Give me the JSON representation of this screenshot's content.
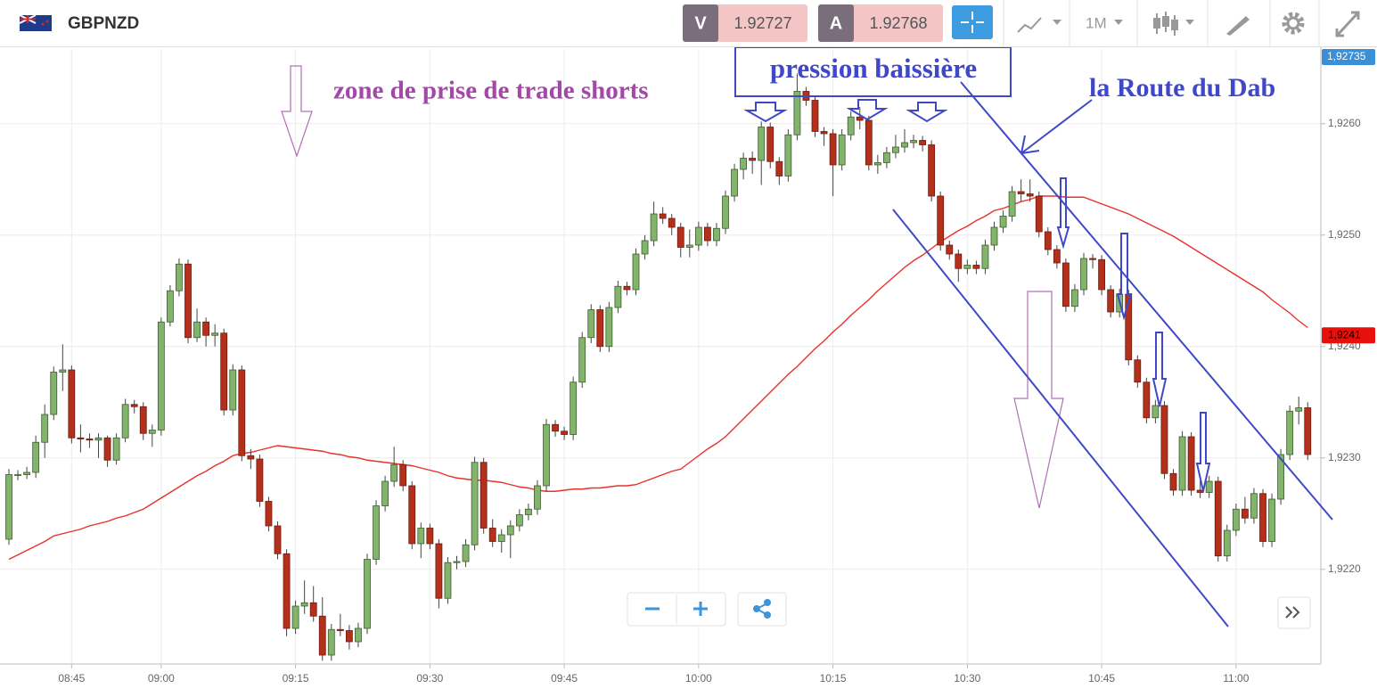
{
  "header": {
    "symbol": "GBPNZD",
    "sell_label": "V",
    "sell_price": "1.92727",
    "buy_label": "A",
    "buy_price": "1.92768",
    "timeframe": "1M"
  },
  "chart_data": {
    "type": "candlestick",
    "grid": true,
    "up_color": "#82b46b",
    "down_color": "#b5301b",
    "ylim": [
      1.92115,
      1.92667
    ],
    "yticks": [
      {
        "value": 1.922,
        "label": "1,9220"
      },
      {
        "value": 1.923,
        "label": "1,9230"
      },
      {
        "value": 1.924,
        "label": "1,9240"
      },
      {
        "value": 1.925,
        "label": "1,9250"
      },
      {
        "value": 1.926,
        "label": "1,9260"
      }
    ],
    "annotations": [
      "zone de prise de trade shorts",
      "pression baissière",
      "la Route du Dab"
    ],
    "top_tag": {
      "label": "1,92735",
      "color": "#3b8fd6"
    },
    "price_tags": [
      {
        "value": 1.9241,
        "label": "1,9241",
        "color": "#e8100a"
      }
    ],
    "categories": [
      null,
      null,
      null,
      null,
      null,
      null,
      null,
      "08:45",
      null,
      null,
      null,
      null,
      null,
      null,
      null,
      null,
      null,
      "09:00",
      null,
      null,
      null,
      null,
      null,
      null,
      null,
      null,
      null,
      null,
      null,
      null,
      null,
      null,
      "09:15",
      null,
      null,
      null,
      null,
      null,
      null,
      null,
      null,
      null,
      null,
      null,
      null,
      null,
      null,
      "09:30",
      null,
      null,
      null,
      null,
      null,
      null,
      null,
      null,
      null,
      null,
      null,
      null,
      null,
      null,
      "09:45",
      null,
      null,
      null,
      null,
      null,
      null,
      null,
      null,
      null,
      null,
      null,
      null,
      null,
      null,
      "10:00",
      null,
      null,
      null,
      null,
      null,
      null,
      null,
      null,
      null,
      null,
      null,
      null,
      null,
      null,
      "10:15",
      null,
      null,
      null,
      null,
      null,
      null,
      null,
      null,
      null,
      null,
      null,
      null,
      null,
      null,
      "10:30",
      null,
      null,
      null,
      null,
      null,
      null,
      null,
      null,
      null,
      null,
      null,
      null,
      null,
      null,
      "10:45",
      null,
      null,
      null,
      null,
      null,
      null,
      null,
      null,
      null,
      null,
      null,
      null,
      null,
      null,
      "11:00",
      null,
      null,
      null,
      null,
      null,
      null,
      null,
      null
    ],
    "ohlc": [
      [
        1.92227,
        1.9229,
        1.92222,
        1.92285
      ],
      [
        1.92285,
        1.92289,
        1.9228,
        1.92285
      ],
      [
        1.92285,
        1.92292,
        1.92281,
        1.92287
      ],
      [
        1.92287,
        1.9232,
        1.92282,
        1.92314
      ],
      [
        1.92314,
        1.92348,
        1.923,
        1.92339
      ],
      [
        1.92339,
        1.92382,
        1.92334,
        1.92377
      ],
      [
        1.92377,
        1.92402,
        1.9236,
        1.92379
      ],
      [
        1.92379,
        1.92383,
        1.92313,
        1.92318
      ],
      [
        1.92318,
        1.9233,
        1.92305,
        1.92317
      ],
      [
        1.92317,
        1.92322,
        1.92309,
        1.92316
      ],
      [
        1.92316,
        1.92322,
        1.923,
        1.92318
      ],
      [
        1.92318,
        1.9232,
        1.92292,
        1.92298
      ],
      [
        1.92298,
        1.92322,
        1.92294,
        1.92318
      ],
      [
        1.92318,
        1.92353,
        1.92314,
        1.92348
      ],
      [
        1.92348,
        1.92352,
        1.9234,
        1.92346
      ],
      [
        1.92346,
        1.9235,
        1.92316,
        1.92322
      ],
      [
        1.92322,
        1.9233,
        1.9231,
        1.92325
      ],
      [
        1.92325,
        1.92426,
        1.9232,
        1.92422
      ],
      [
        1.92422,
        1.92455,
        1.92418,
        1.9245
      ],
      [
        1.9245,
        1.92479,
        1.92445,
        1.92474
      ],
      [
        1.92474,
        1.92478,
        1.92403,
        1.92408
      ],
      [
        1.92408,
        1.92434,
        1.92404,
        1.92422
      ],
      [
        1.92422,
        1.92426,
        1.924,
        1.9241
      ],
      [
        1.9241,
        1.9242,
        1.924,
        1.92412
      ],
      [
        1.92412,
        1.92416,
        1.92338,
        1.92343
      ],
      [
        1.92343,
        1.92384,
        1.92338,
        1.92379
      ],
      [
        1.92379,
        1.92383,
        1.92297,
        1.92302
      ],
      [
        1.92302,
        1.92308,
        1.9229,
        1.92299
      ],
      [
        1.92299,
        1.92303,
        1.92256,
        1.92261
      ],
      [
        1.92261,
        1.92265,
        1.92234,
        1.92239
      ],
      [
        1.92239,
        1.92243,
        1.92209,
        1.92214
      ],
      [
        1.92214,
        1.92218,
        1.9214,
        1.92147
      ],
      [
        1.92147,
        1.92172,
        1.92142,
        1.92167
      ],
      [
        1.92167,
        1.9219,
        1.9216,
        1.9217
      ],
      [
        1.9217,
        1.92185,
        1.92153,
        1.92158
      ],
      [
        1.92158,
        1.92175,
        1.92118,
        1.92123
      ],
      [
        1.92123,
        1.92151,
        1.92118,
        1.92146
      ],
      [
        1.92146,
        1.9216,
        1.9214,
        1.92145
      ],
      [
        1.92145,
        1.9215,
        1.92128,
        1.92135
      ],
      [
        1.92135,
        1.92152,
        1.9213,
        1.92147
      ],
      [
        1.92147,
        1.92214,
        1.92142,
        1.92209
      ],
      [
        1.92209,
        1.92262,
        1.92204,
        1.92257
      ],
      [
        1.92257,
        1.92284,
        1.92252,
        1.92279
      ],
      [
        1.92279,
        1.9231,
        1.92274,
        1.92294
      ],
      [
        1.92294,
        1.92298,
        1.9227,
        1.92275
      ],
      [
        1.92275,
        1.92279,
        1.92218,
        1.92223
      ],
      [
        1.92223,
        1.92242,
        1.9221,
        1.92237
      ],
      [
        1.92237,
        1.92241,
        1.92218,
        1.92223
      ],
      [
        1.92223,
        1.92227,
        1.92165,
        1.92174
      ],
      [
        1.92174,
        1.92211,
        1.92169,
        1.92206
      ],
      [
        1.92206,
        1.92212,
        1.922,
        1.92207
      ],
      [
        1.92207,
        1.92227,
        1.92202,
        1.92222
      ],
      [
        1.92222,
        1.92301,
        1.92217,
        1.92296
      ],
      [
        1.92296,
        1.923,
        1.92232,
        1.92237
      ],
      [
        1.92237,
        1.92245,
        1.9222,
        1.92225
      ],
      [
        1.92225,
        1.92236,
        1.92215,
        1.92231
      ],
      [
        1.92231,
        1.92244,
        1.9221,
        1.92239
      ],
      [
        1.92239,
        1.92254,
        1.92234,
        1.92249
      ],
      [
        1.92249,
        1.92259,
        1.92244,
        1.92254
      ],
      [
        1.92254,
        1.9228,
        1.92249,
        1.92275
      ],
      [
        1.92275,
        1.92335,
        1.9227,
        1.9233
      ],
      [
        1.9233,
        1.92334,
        1.92319,
        1.92324
      ],
      [
        1.92324,
        1.92328,
        1.92316,
        1.92321
      ],
      [
        1.92321,
        1.92373,
        1.92316,
        1.92368
      ],
      [
        1.92368,
        1.92413,
        1.92363,
        1.92408
      ],
      [
        1.92408,
        1.92438,
        1.92403,
        1.92433
      ],
      [
        1.92433,
        1.92437,
        1.92395,
        1.924
      ],
      [
        1.924,
        1.9244,
        1.92395,
        1.92435
      ],
      [
        1.92435,
        1.92459,
        1.9243,
        1.92454
      ],
      [
        1.92454,
        1.92458,
        1.92446,
        1.92451
      ],
      [
        1.92451,
        1.92488,
        1.92446,
        1.92483
      ],
      [
        1.92483,
        1.925,
        1.92478,
        1.92495
      ],
      [
        1.92495,
        1.9253,
        1.9249,
        1.92519
      ],
      [
        1.92519,
        1.92525,
        1.9251,
        1.92515
      ],
      [
        1.92515,
        1.92519,
        1.925,
        1.92507
      ],
      [
        1.92507,
        1.92511,
        1.9248,
        1.92489
      ],
      [
        1.92489,
        1.92505,
        1.9248,
        1.92491
      ],
      [
        1.92491,
        1.92512,
        1.92486,
        1.92507
      ],
      [
        1.92507,
        1.92511,
        1.9249,
        1.92495
      ],
      [
        1.92495,
        1.92511,
        1.9249,
        1.92506
      ],
      [
        1.92506,
        1.9254,
        1.92501,
        1.92535
      ],
      [
        1.92535,
        1.92564,
        1.9253,
        1.92559
      ],
      [
        1.92559,
        1.92574,
        1.9255,
        1.92569
      ],
      [
        1.92569,
        1.92575,
        1.92555,
        1.92567
      ],
      [
        1.92567,
        1.92602,
        1.92545,
        1.92597
      ],
      [
        1.92597,
        1.92601,
        1.9256,
        1.92566
      ],
      [
        1.92566,
        1.9257,
        1.92545,
        1.92553
      ],
      [
        1.92553,
        1.92595,
        1.92548,
        1.9259
      ],
      [
        1.9259,
        1.92645,
        1.92585,
        1.92629
      ],
      [
        1.92629,
        1.92633,
        1.92616,
        1.92621
      ],
      [
        1.92621,
        1.92625,
        1.92588,
        1.92593
      ],
      [
        1.92593,
        1.92597,
        1.9258,
        1.92591
      ],
      [
        1.92591,
        1.92595,
        1.92535,
        1.92563
      ],
      [
        1.92563,
        1.92595,
        1.92558,
        1.9259
      ],
      [
        1.9259,
        1.92611,
        1.92585,
        1.92606
      ],
      [
        1.92606,
        1.92615,
        1.92595,
        1.92603
      ],
      [
        1.92603,
        1.92607,
        1.92558,
        1.92563
      ],
      [
        1.92563,
        1.92572,
        1.92555,
        1.92565
      ],
      [
        1.92565,
        1.92579,
        1.9256,
        1.92574
      ],
      [
        1.92574,
        1.9259,
        1.92569,
        1.92579
      ],
      [
        1.92579,
        1.92595,
        1.92574,
        1.92583
      ],
      [
        1.92583,
        1.9259,
        1.92578,
        1.92585
      ],
      [
        1.92585,
        1.92589,
        1.92575,
        1.92581
      ],
      [
        1.92581,
        1.92585,
        1.9253,
        1.92535
      ],
      [
        1.92535,
        1.92539,
        1.92486,
        1.92491
      ],
      [
        1.92491,
        1.92495,
        1.92478,
        1.92483
      ],
      [
        1.92483,
        1.92487,
        1.92458,
        1.9247
      ],
      [
        1.9247,
        1.92478,
        1.92465,
        1.92473
      ],
      [
        1.92473,
        1.92477,
        1.92465,
        1.9247
      ],
      [
        1.9247,
        1.92496,
        1.92465,
        1.92491
      ],
      [
        1.92491,
        1.92512,
        1.92486,
        1.92507
      ],
      [
        1.92507,
        1.92522,
        1.92502,
        1.92517
      ],
      [
        1.92517,
        1.92544,
        1.92512,
        1.92539
      ],
      [
        1.92539,
        1.9255,
        1.9253,
        1.92537
      ],
      [
        1.92537,
        1.9255,
        1.9253,
        1.92535
      ],
      [
        1.92535,
        1.92539,
        1.92498,
        1.92503
      ],
      [
        1.92503,
        1.92507,
        1.92482,
        1.92487
      ],
      [
        1.92487,
        1.92491,
        1.9247,
        1.92475
      ],
      [
        1.92475,
        1.92479,
        1.92431,
        1.92436
      ],
      [
        1.92436,
        1.92456,
        1.92431,
        1.92451
      ],
      [
        1.92451,
        1.92484,
        1.92446,
        1.92479
      ],
      [
        1.92479,
        1.92483,
        1.9247,
        1.92478
      ],
      [
        1.92478,
        1.92482,
        1.92446,
        1.92451
      ],
      [
        1.92451,
        1.92455,
        1.92426,
        1.92431
      ],
      [
        1.92431,
        1.92452,
        1.92426,
        1.92447
      ],
      [
        1.92447,
        1.92451,
        1.92383,
        1.92388
      ],
      [
        1.92388,
        1.92392,
        1.92363,
        1.92368
      ],
      [
        1.92368,
        1.92372,
        1.92331,
        1.92336
      ],
      [
        1.92336,
        1.92352,
        1.92331,
        1.92347
      ],
      [
        1.92347,
        1.92351,
        1.92281,
        1.92286
      ],
      [
        1.92286,
        1.9229,
        1.92266,
        1.92271
      ],
      [
        1.92271,
        1.92324,
        1.92266,
        1.92319
      ],
      [
        1.92319,
        1.92323,
        1.92266,
        1.92271
      ],
      [
        1.92271,
        1.9228,
        1.92264,
        1.92269
      ],
      [
        1.92269,
        1.92284,
        1.92264,
        1.92279
      ],
      [
        1.92279,
        1.92283,
        1.92207,
        1.92212
      ],
      [
        1.92212,
        1.9224,
        1.92207,
        1.92235
      ],
      [
        1.92235,
        1.92259,
        1.9223,
        1.92254
      ],
      [
        1.92254,
        1.92265,
        1.92241,
        1.92246
      ],
      [
        1.92246,
        1.92273,
        1.92241,
        1.92268
      ],
      [
        1.92268,
        1.92272,
        1.9222,
        1.92225
      ],
      [
        1.92225,
        1.92268,
        1.9222,
        1.92263
      ],
      [
        1.92263,
        1.92308,
        1.92258,
        1.92303
      ],
      [
        1.92303,
        1.92347,
        1.92298,
        1.92342
      ],
      [
        1.92342,
        1.92355,
        1.9233,
        1.92345
      ],
      [
        1.92345,
        1.9235,
        1.92298,
        1.92303
      ]
    ],
    "moving_average": {
      "color": "#e8312a",
      "values": [
        1.92209,
        1.92213,
        1.92217,
        1.92221,
        1.92225,
        1.9223,
        1.92232,
        1.92234,
        1.92236,
        1.92239,
        1.92241,
        1.92243,
        1.92246,
        1.92248,
        1.92251,
        1.92254,
        1.92259,
        1.92264,
        1.92269,
        1.92274,
        1.92279,
        1.92284,
        1.92288,
        1.92293,
        1.92297,
        1.92302,
        1.92304,
        1.92305,
        1.92307,
        1.92309,
        1.92311,
        1.9231,
        1.92309,
        1.92308,
        1.92307,
        1.92306,
        1.92304,
        1.92303,
        1.92301,
        1.923,
        1.92298,
        1.92297,
        1.92296,
        1.92295,
        1.92294,
        1.92293,
        1.92291,
        1.92289,
        1.92287,
        1.92284,
        1.92282,
        1.92281,
        1.9228,
        1.9228,
        1.92279,
        1.92278,
        1.92276,
        1.92274,
        1.92273,
        1.92271,
        1.9227,
        1.9227,
        1.92271,
        1.92272,
        1.92272,
        1.92273,
        1.92273,
        1.92274,
        1.92275,
        1.92275,
        1.92276,
        1.92279,
        1.92282,
        1.92285,
        1.92288,
        1.9229,
        1.92296,
        1.92302,
        1.92308,
        1.92313,
        1.92319,
        1.92327,
        1.92335,
        1.92343,
        1.92351,
        1.92359,
        1.92367,
        1.92375,
        1.92382,
        1.9239,
        1.92398,
        1.92405,
        1.92413,
        1.9242,
        1.92428,
        1.92435,
        1.92442,
        1.9245,
        1.92457,
        1.92464,
        1.92471,
        1.92477,
        1.92482,
        1.92488,
        1.92494,
        1.92499,
        1.92504,
        1.92508,
        1.92513,
        1.92517,
        1.92522,
        1.92524,
        1.92527,
        1.9253,
        1.92532,
        1.92535,
        1.92535,
        1.92535,
        1.92534,
        1.92534,
        1.92534,
        1.92531,
        1.92528,
        1.92525,
        1.92522,
        1.92519,
        1.92515,
        1.92511,
        1.92507,
        1.92503,
        1.92499,
        1.92494,
        1.92489,
        1.92484,
        1.92479,
        1.92474,
        1.92469,
        1.92464,
        1.92459,
        1.92454,
        1.92449,
        1.92442,
        1.92436,
        1.9243,
        1.92423,
        1.92417
      ]
    }
  }
}
